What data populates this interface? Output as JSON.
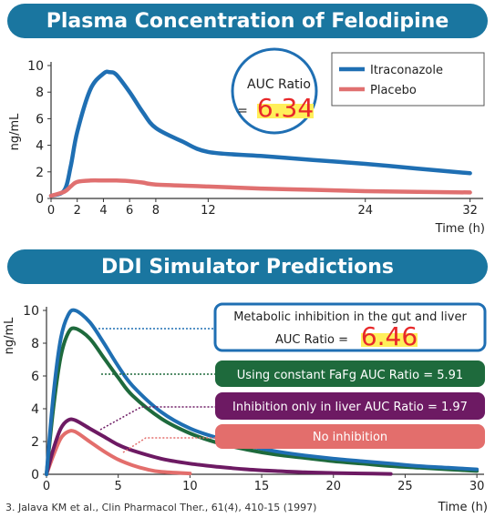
{
  "banners": {
    "top": "Plasma Concentration of Felodipine",
    "bottom": "DDI Simulator Predictions"
  },
  "reference": "3. Jalava KM et al., Clin Pharmacol Ther., 61(4), 410-15 (1997)",
  "colors": {
    "banner": "#1a76a0",
    "itraconazole": "#1f6fb3",
    "placebo": "#e07070",
    "highlight": "#ffef5a",
    "ratio_red": "#e8282a",
    "gut_liver": "#1f6fb3",
    "constant_fafg": "#1e6a3c",
    "liver_only": "#6d1a63",
    "no_inhibition": "#e36e6c"
  },
  "chart_data": [
    {
      "type": "line",
      "title": "Plasma Concentration of Felodipine",
      "ylabel": "ng/mL",
      "xlabel": "Time (h)",
      "xlim": [
        0,
        33
      ],
      "ylim": [
        0,
        10
      ],
      "x_ticks": [
        0,
        2,
        4,
        6,
        8,
        12,
        24,
        32
      ],
      "y_ticks": [
        0,
        2,
        4,
        6,
        8,
        10
      ],
      "legend_position": "top-right",
      "series": [
        {
          "name": "Itraconazole",
          "x": [
            0,
            1,
            1.5,
            2,
            3,
            4,
            4.5,
            5,
            6,
            7,
            8,
            10,
            12,
            16,
            20,
            24,
            28,
            32
          ],
          "y": [
            0.2,
            0.6,
            2.4,
            5.0,
            8.2,
            9.4,
            9.5,
            9.3,
            8.0,
            6.5,
            5.3,
            4.3,
            3.5,
            3.2,
            2.9,
            2.6,
            2.25,
            1.9
          ]
        },
        {
          "name": "Placebo",
          "x": [
            0,
            1,
            1.5,
            2,
            3,
            4,
            5,
            6,
            7,
            8,
            12,
            16,
            20,
            24,
            28,
            32
          ],
          "y": [
            0.2,
            0.5,
            0.9,
            1.25,
            1.35,
            1.35,
            1.35,
            1.3,
            1.2,
            1.05,
            0.9,
            0.75,
            0.65,
            0.55,
            0.5,
            0.45
          ]
        }
      ],
      "annotation": {
        "label": "AUC Ratio",
        "prefix": "=",
        "value": "6.34"
      }
    },
    {
      "type": "line",
      "title": "DDI Simulator Predictions",
      "ylabel": "ng/mL",
      "xlabel": "Time (h)",
      "xlim": [
        0,
        30.5
      ],
      "ylim": [
        0,
        10
      ],
      "x_ticks": [
        0,
        5,
        10,
        15,
        20,
        25,
        30
      ],
      "y_ticks": [
        0,
        2,
        4,
        6,
        8,
        10
      ],
      "series": [
        {
          "name": "Metabolic inhibition in the gut and liver",
          "x": [
            0,
            0.5,
            1,
            1.5,
            2,
            3,
            4,
            5,
            6,
            8,
            10,
            12,
            14,
            16,
            18,
            20,
            22,
            24,
            26,
            28,
            30
          ],
          "y": [
            0,
            5.0,
            8.3,
            9.7,
            10.0,
            9.3,
            8.0,
            6.6,
            5.4,
            3.8,
            2.8,
            2.2,
            1.75,
            1.4,
            1.15,
            0.95,
            0.8,
            0.65,
            0.5,
            0.4,
            0.3
          ]
        },
        {
          "name": "Using constant FaFg",
          "x": [
            0,
            0.5,
            1,
            1.5,
            2,
            3,
            4,
            5,
            6,
            8,
            10,
            12,
            14,
            16,
            18,
            20,
            22,
            24,
            26,
            28,
            30
          ],
          "y": [
            0,
            4.2,
            7.2,
            8.6,
            8.9,
            8.3,
            7.1,
            5.9,
            4.8,
            3.4,
            2.5,
            1.9,
            1.5,
            1.2,
            1.0,
            0.8,
            0.65,
            0.5,
            0.4,
            0.3,
            0.2
          ]
        },
        {
          "name": "Inhibition only in liver",
          "x": [
            0,
            0.5,
            1,
            1.5,
            2,
            3,
            4,
            5,
            6,
            8,
            10,
            12,
            14,
            16,
            18,
            20,
            22,
            24
          ],
          "y": [
            0,
            1.6,
            2.8,
            3.3,
            3.3,
            2.8,
            2.3,
            1.8,
            1.45,
            0.95,
            0.65,
            0.45,
            0.3,
            0.2,
            0.12,
            0.08,
            0.05,
            0.02
          ]
        },
        {
          "name": "No inhibition",
          "x": [
            0,
            0.5,
            1,
            1.5,
            2,
            3,
            4,
            5,
            6,
            7,
            8,
            10
          ],
          "y": [
            0,
            1.2,
            2.2,
            2.6,
            2.6,
            2.0,
            1.4,
            0.9,
            0.55,
            0.3,
            0.15,
            0.05
          ]
        }
      ],
      "labels": {
        "gut_liver_line1": "Metabolic inhibition in the gut and liver",
        "gut_liver_line2": "AUC Ratio =",
        "gut_liver_value": "6.46",
        "constant_fafg": "Using constant FaFg AUC Ratio = 5.91",
        "liver_only": "Inhibition only in liver AUC Ratio = 1.97",
        "no_inhibition": "No inhibition"
      }
    }
  ]
}
